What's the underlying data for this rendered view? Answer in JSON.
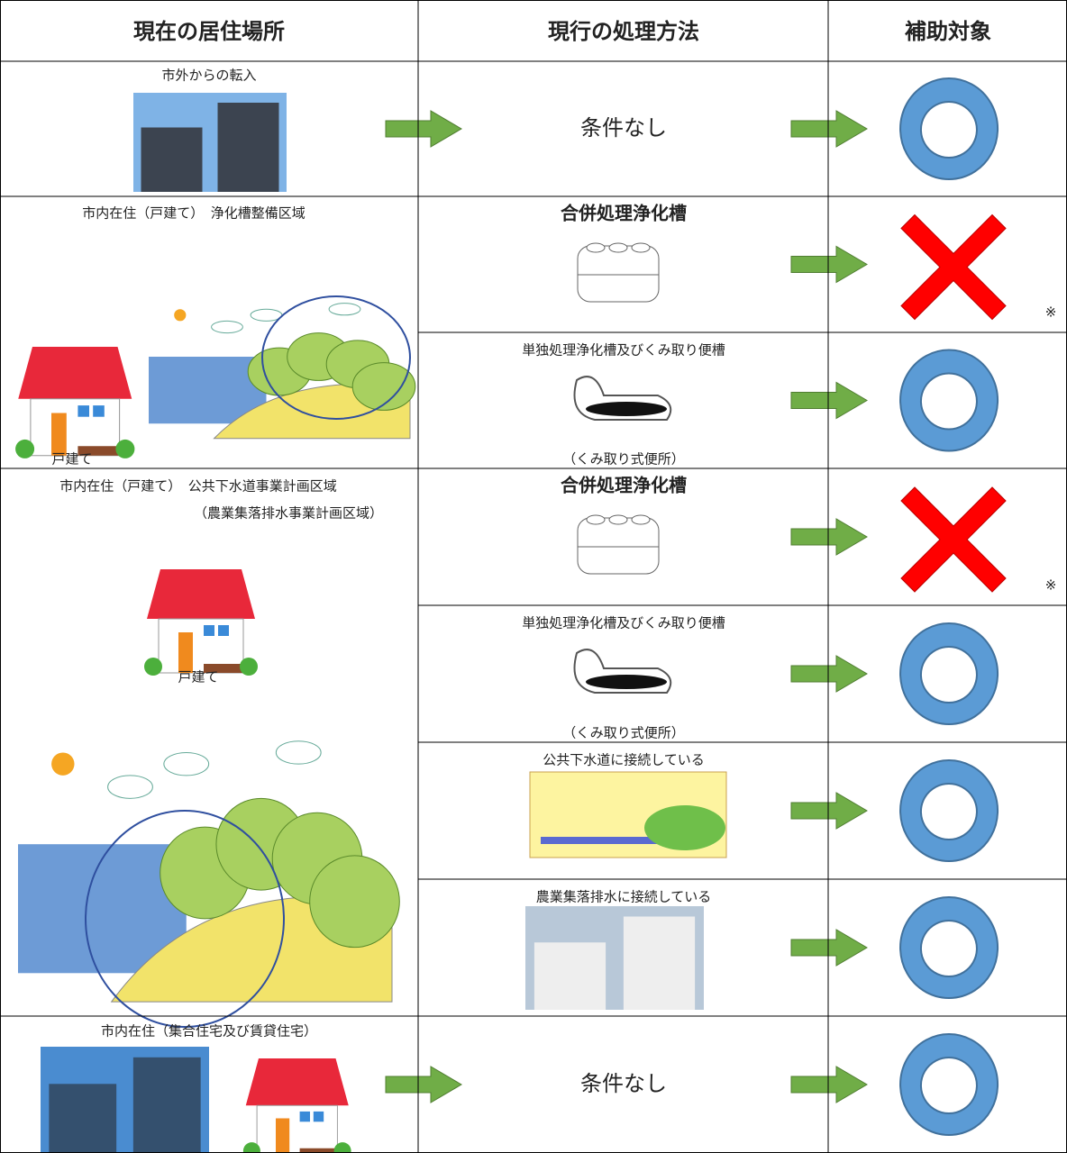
{
  "header": {
    "columns": [
      "現在の居住場所",
      "現行の処理方法",
      "補助対象"
    ]
  },
  "rows": [
    {
      "residence": {
        "label": "市外からの転入"
      },
      "methods": [
        {
          "label": "条件なし",
          "eligible": true
        }
      ]
    },
    {
      "residence": {
        "label": "市内在住（戸建て）　浄化槽整備区域",
        "caption": "戸建て"
      },
      "methods": [
        {
          "label": "合併処理浄化槽",
          "bold": true,
          "eligible": false,
          "note": "※"
        },
        {
          "label": "単独処理浄化槽及びくみ取り便槽",
          "sublabel": "（くみ取り式便所）",
          "eligible": true
        }
      ]
    },
    {
      "residence": {
        "label": "市内在住（戸建て）　公共下水道事業計画区域",
        "label2": "（農業集落排水事業計画区域）",
        "caption": "戸建て"
      },
      "methods": [
        {
          "label": "合併処理浄化槽",
          "bold": true,
          "eligible": false,
          "note": "※"
        },
        {
          "label": "単独処理浄化槽及びくみ取り便槽",
          "sublabel": "（くみ取り式便所）",
          "eligible": true
        },
        {
          "label": "公共下水道に接続している",
          "eligible": true
        },
        {
          "label": "農業集落排水に接続している",
          "eligible": true
        }
      ]
    },
    {
      "residence": {
        "label": "市内在住（集合住宅及び賃貸住宅）"
      },
      "methods": [
        {
          "label": "条件なし",
          "eligible": true
        }
      ]
    }
  ]
}
